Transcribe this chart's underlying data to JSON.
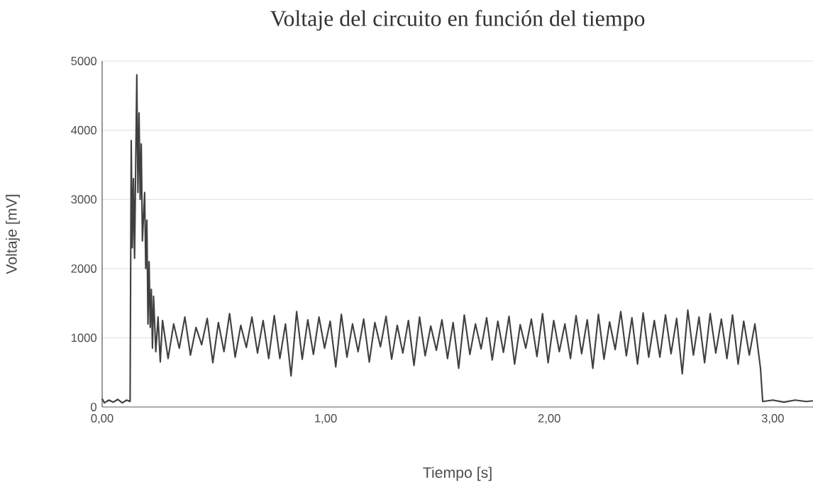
{
  "chart_data": {
    "type": "line",
    "title": "Voltaje del circuito en función del tiempo",
    "xlabel": "Tiempo [s]",
    "ylabel": "Voltaje [mV]",
    "xlim": [
      0,
      3.18
    ],
    "ylim": [
      0,
      5000
    ],
    "xticks": [
      {
        "value": 0,
        "label": "0,00"
      },
      {
        "value": 1,
        "label": "1,00"
      },
      {
        "value": 2,
        "label": "2,00"
      },
      {
        "value": 3,
        "label": "3,00"
      }
    ],
    "yticks": [
      0,
      1000,
      2000,
      3000,
      4000,
      5000
    ],
    "grid": "y",
    "x": [
      0,
      0.01,
      0.03,
      0.05,
      0.07,
      0.09,
      0.11,
      0.125,
      0.13,
      0.135,
      0.14,
      0.145,
      0.155,
      0.16,
      0.165,
      0.17,
      0.175,
      0.18,
      0.19,
      0.195,
      0.2,
      0.205,
      0.21,
      0.215,
      0.22,
      0.225,
      0.23,
      0.24,
      0.25,
      0.26,
      0.27,
      0.295,
      0.32,
      0.345,
      0.37,
      0.395,
      0.42,
      0.445,
      0.47,
      0.495,
      0.52,
      0.545,
      0.57,
      0.595,
      0.62,
      0.645,
      0.67,
      0.695,
      0.72,
      0.745,
      0.77,
      0.795,
      0.82,
      0.845,
      0.87,
      0.895,
      0.92,
      0.945,
      0.97,
      0.995,
      1.02,
      1.045,
      1.07,
      1.095,
      1.12,
      1.145,
      1.17,
      1.195,
      1.22,
      1.245,
      1.27,
      1.295,
      1.32,
      1.345,
      1.37,
      1.395,
      1.42,
      1.445,
      1.47,
      1.495,
      1.52,
      1.545,
      1.57,
      1.595,
      1.62,
      1.645,
      1.67,
      1.695,
      1.72,
      1.745,
      1.77,
      1.795,
      1.82,
      1.845,
      1.87,
      1.895,
      1.92,
      1.945,
      1.97,
      1.995,
      2.02,
      2.045,
      2.07,
      2.095,
      2.12,
      2.145,
      2.17,
      2.195,
      2.22,
      2.245,
      2.27,
      2.295,
      2.32,
      2.345,
      2.37,
      2.395,
      2.42,
      2.445,
      2.47,
      2.495,
      2.52,
      2.545,
      2.57,
      2.595,
      2.62,
      2.645,
      2.67,
      2.695,
      2.72,
      2.745,
      2.77,
      2.795,
      2.82,
      2.845,
      2.87,
      2.895,
      2.92,
      2.945,
      2.955,
      3.0,
      3.05,
      3.1,
      3.15,
      3.18
    ],
    "series": [
      {
        "color": "#404040",
        "values": [
          120,
          60,
          100,
          70,
          110,
          60,
          100,
          80,
          3850,
          2300,
          3300,
          2150,
          4800,
          3100,
          4250,
          3000,
          3800,
          2400,
          3100,
          2000,
          2700,
          1200,
          2100,
          1150,
          1700,
          850,
          1600,
          800,
          1300,
          650,
          1250,
          700,
          1200,
          850,
          1300,
          750,
          1150,
          900,
          1280,
          640,
          1220,
          800,
          1350,
          720,
          1180,
          860,
          1300,
          780,
          1250,
          700,
          1320,
          700,
          1200,
          450,
          1380,
          690,
          1260,
          760,
          1300,
          850,
          1240,
          580,
          1340,
          720,
          1200,
          800,
          1270,
          650,
          1220,
          870,
          1310,
          690,
          1180,
          780,
          1250,
          600,
          1300,
          740,
          1170,
          820,
          1260,
          700,
          1220,
          560,
          1330,
          760,
          1200,
          840,
          1290,
          680,
          1240,
          790,
          1310,
          620,
          1190,
          850,
          1270,
          730,
          1350,
          640,
          1250,
          800,
          1200,
          700,
          1320,
          770,
          1260,
          560,
          1340,
          690,
          1230,
          830,
          1380,
          740,
          1290,
          620,
          1360,
          720,
          1250,
          720,
          1330,
          770,
          1280,
          480,
          1400,
          750,
          1300,
          640,
          1350,
          780,
          1270,
          700,
          1330,
          620,
          1240,
          750,
          1200,
          560,
          80,
          100,
          70,
          100,
          80,
          90
        ]
      }
    ]
  }
}
